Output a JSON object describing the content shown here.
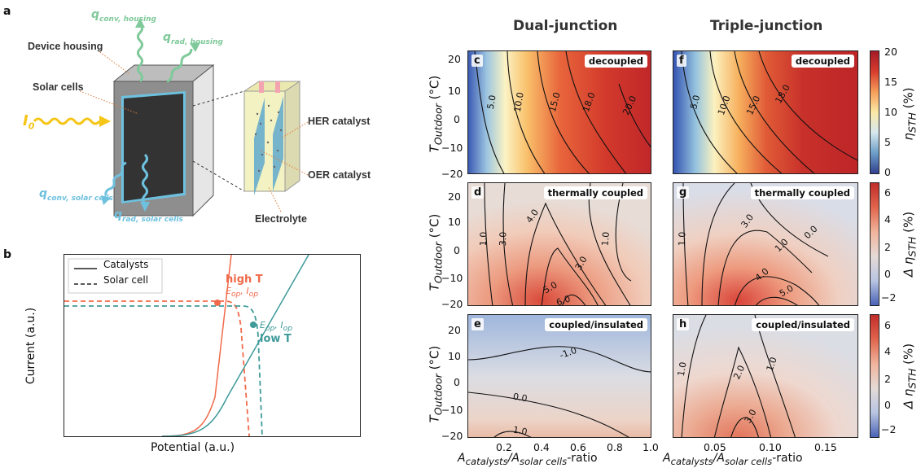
{
  "panel_a": {
    "letter": "a",
    "device_housing": "Device housing",
    "solar_cells": "Solar cells",
    "I0": "I",
    "I0_sub": "0",
    "q_conv_housing": "q",
    "q_conv_housing_sub": "conv, housing",
    "q_rad_housing": "q",
    "q_rad_housing_sub": "rad, housing",
    "q_conv_solar": "q",
    "q_conv_solar_sub": "conv, solar cells",
    "q_rad_solar": "q",
    "q_rad_solar_sub": "rad, solar cells",
    "her_catalyst": "HER catalyst",
    "oer_catalyst": "OER catalyst",
    "electrolyte": "Electrolyte",
    "colors": {
      "green": "#7fc99a",
      "blue": "#6ec1de",
      "yellow": "#f5c518",
      "housing": "#d9d9d9",
      "cell": "#333333"
    }
  },
  "panel_b": {
    "letter": "b",
    "legend_catalysts": "Catalysts",
    "legend_solar": "Solar cell",
    "high_t": "high T",
    "low_t": "low T",
    "eop": "E",
    "eop_sub": "op",
    "iop": "I",
    "iop_sub": "op",
    "xlabel": "Potential (a.u.)",
    "ylabel": "Current (a.u.)",
    "colors": {
      "high": "#f06a4a",
      "low": "#3f9a9a"
    }
  },
  "columns": {
    "dual": "Dual-junction",
    "triple": "Triple-junction"
  },
  "ylabel_main": "T",
  "ylabel_sub": "Outdoor",
  "ylabel_unit": " (°C)",
  "xlabel_pre": "A",
  "xlabel_sub1": "catalysts",
  "xlabel_mid": "/A",
  "xlabel_sub2": "solar cells",
  "xlabel_post": "-ratio",
  "y_ticks": [
    "20",
    "10",
    "0",
    "−10",
    "−20"
  ],
  "x_ticks_dual": [
    "0.2",
    "0.4",
    "0.6",
    "0.8",
    "1.0"
  ],
  "x_ticks_triple": [
    "0.05",
    "0.10",
    "0.15"
  ],
  "panels": [
    {
      "letter": "c",
      "tag": "decoupled",
      "contours": [
        "5.0",
        "10.0",
        "15.0",
        "18.0",
        "20.0"
      ]
    },
    {
      "letter": "d",
      "tag": "thermally coupled",
      "contours": [
        "1.0",
        "3.0",
        "4.0",
        "5.0",
        "6.0",
        "3.0",
        "1.0"
      ]
    },
    {
      "letter": "e",
      "tag": "coupled/insulated",
      "contours": [
        "-1.0",
        "0.0",
        "1.0"
      ]
    },
    {
      "letter": "f",
      "tag": "decoupled",
      "contours": [
        "5.0",
        "10.0",
        "15.0",
        "18.0"
      ]
    },
    {
      "letter": "g",
      "tag": "thermally coupled",
      "contours": [
        "1.0",
        "3.0",
        "1.0",
        "0.0",
        "4.0",
        "5.0"
      ]
    },
    {
      "letter": "h",
      "tag": "coupled/insulated",
      "contours": [
        "1.0",
        "2.0",
        "1.0",
        "3.0"
      ]
    }
  ],
  "colorbars": [
    {
      "label": "η",
      "sub": "STH",
      "unit": " (%)",
      "ticks": [
        "20",
        "15",
        "10",
        "5",
        "0"
      ]
    },
    {
      "label": "Δ η",
      "sub": "STH",
      "unit": " (%)",
      "ticks": [
        "6",
        "4",
        "2",
        "0",
        "−2"
      ]
    },
    {
      "label": "Δ η",
      "sub": "STH",
      "unit": " (%)",
      "ticks": [
        "6",
        "4",
        "2",
        "0",
        "−2"
      ]
    }
  ]
}
